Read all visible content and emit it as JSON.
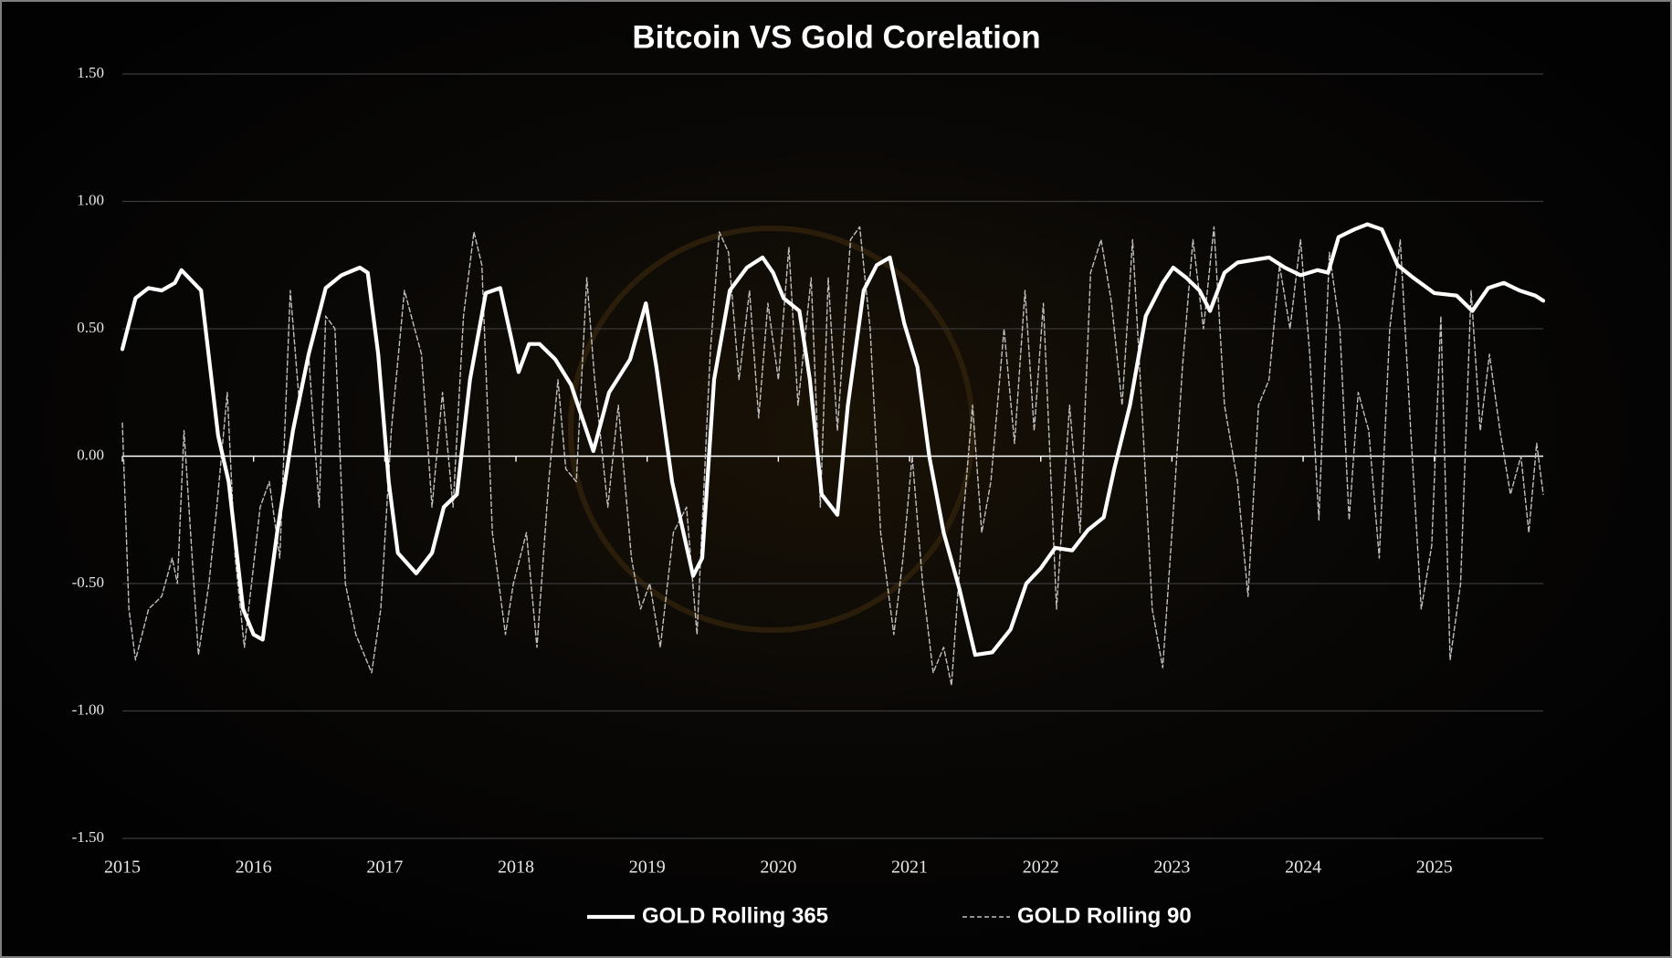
{
  "chart_data": {
    "type": "line",
    "title": "Bitcoin VS Gold Corelation",
    "xlim": [
      2015,
      2025.83
    ],
    "xticks": [
      2015,
      2016,
      2017,
      2018,
      2019,
      2020,
      2021,
      2022,
      2023,
      2024,
      2025
    ],
    "ylim": [
      -1.5,
      1.5
    ],
    "yticks": [
      {
        "value": -1.5,
        "label": "-1.50"
      },
      {
        "value": -1,
        "label": "-1.00"
      },
      {
        "value": -0.5,
        "label": "-0.50"
      },
      {
        "value": 0,
        "label": "0.00"
      },
      {
        "value": 0.5,
        "label": "0.50"
      },
      {
        "value": 1,
        "label": "1.00"
      },
      {
        "value": 1.5,
        "label": "1.50"
      }
    ],
    "grid": true,
    "legend": "bottom",
    "series": [
      {
        "name": "GOLD Rolling 365",
        "color": "#ffffff",
        "style": "solid",
        "x": [
          2015.0,
          2015.1,
          2015.2,
          2015.3,
          2015.4,
          2015.45,
          2015.6,
          2015.73,
          2015.81,
          2015.92,
          2016.0,
          2016.07,
          2016.18,
          2016.3,
          2016.42,
          2016.55,
          2016.67,
          2016.81,
          2016.87,
          2016.95,
          2017.03,
          2017.1,
          2017.24,
          2017.36,
          2017.45,
          2017.55,
          2017.65,
          2017.77,
          2017.88,
          2017.97,
          2018.02,
          2018.1,
          2018.18,
          2018.3,
          2018.42,
          2018.59,
          2018.71,
          2018.87,
          2018.99,
          2019.07,
          2019.19,
          2019.35,
          2019.42,
          2019.51,
          2019.63,
          2019.76,
          2019.88,
          2019.96,
          2020.04,
          2020.16,
          2020.24,
          2020.33,
          2020.45,
          2020.53,
          2020.65,
          2020.75,
          2020.85,
          2020.96,
          2021.06,
          2021.15,
          2021.26,
          2021.38,
          2021.5,
          2021.63,
          2021.77,
          2021.89,
          2022.0,
          2022.11,
          2022.24,
          2022.36,
          2022.48,
          2022.56,
          2022.68,
          2022.8,
          2022.93,
          2023.01,
          2023.11,
          2023.21,
          2023.29,
          2023.4,
          2023.5,
          2023.62,
          2023.74,
          2023.86,
          2023.98,
          2024.11,
          2024.19,
          2024.27,
          2024.39,
          2024.49,
          2024.6,
          2024.72,
          2024.84,
          2025.0,
          2025.17,
          2025.29,
          2025.41,
          2025.53,
          2025.65,
          2025.77,
          2025.83
        ],
        "values": [
          0.42,
          0.62,
          0.66,
          0.65,
          0.68,
          0.73,
          0.65,
          0.08,
          -0.1,
          -0.6,
          -0.7,
          -0.72,
          -0.3,
          0.1,
          0.4,
          0.66,
          0.71,
          0.74,
          0.72,
          0.4,
          -0.1,
          -0.38,
          -0.46,
          -0.38,
          -0.2,
          -0.15,
          0.3,
          0.64,
          0.66,
          0.45,
          0.33,
          0.44,
          0.44,
          0.38,
          0.28,
          0.02,
          0.25,
          0.38,
          0.6,
          0.35,
          -0.1,
          -0.47,
          -0.4,
          0.3,
          0.65,
          0.74,
          0.78,
          0.72,
          0.62,
          0.57,
          0.3,
          -0.15,
          -0.23,
          0.2,
          0.65,
          0.75,
          0.78,
          0.52,
          0.35,
          0.0,
          -0.3,
          -0.52,
          -0.78,
          -0.77,
          -0.68,
          -0.5,
          -0.44,
          -0.36,
          -0.37,
          -0.29,
          -0.24,
          -0.05,
          0.2,
          0.55,
          0.68,
          0.74,
          0.7,
          0.65,
          0.57,
          0.72,
          0.76,
          0.77,
          0.78,
          0.74,
          0.71,
          0.73,
          0.72,
          0.86,
          0.89,
          0.91,
          0.89,
          0.75,
          0.7,
          0.64,
          0.63,
          0.57,
          0.66,
          0.68,
          0.65,
          0.63,
          0.61
        ]
      },
      {
        "name": "GOLD Rolling 90",
        "color": "#bfbfbf",
        "style": "dashed",
        "x": [
          2015.0,
          2015.05,
          2015.1,
          2015.2,
          2015.3,
          2015.38,
          2015.42,
          2015.47,
          2015.52,
          2015.58,
          2015.66,
          2015.72,
          2015.8,
          2015.86,
          2015.93,
          2016.05,
          2016.12,
          2016.2,
          2016.28,
          2016.35,
          2016.42,
          2016.5,
          2016.55,
          2016.62,
          2016.7,
          2016.78,
          2016.9,
          2016.97,
          2017.05,
          2017.15,
          2017.28,
          2017.36,
          2017.44,
          2017.52,
          2017.6,
          2017.68,
          2017.74,
          2017.82,
          2017.92,
          2017.98,
          2018.08,
          2018.16,
          2018.25,
          2018.32,
          2018.38,
          2018.46,
          2018.54,
          2018.6,
          2018.7,
          2018.78,
          2018.88,
          2018.95,
          2019.02,
          2019.1,
          2019.2,
          2019.3,
          2019.38,
          2019.48,
          2019.55,
          2019.62,
          2019.7,
          2019.78,
          2019.85,
          2019.92,
          2020.0,
          2020.08,
          2020.15,
          2020.25,
          2020.32,
          2020.38,
          2020.45,
          2020.55,
          2020.62,
          2020.7,
          2020.78,
          2020.88,
          2020.95,
          2021.02,
          2021.1,
          2021.18,
          2021.26,
          2021.32,
          2021.4,
          2021.48,
          2021.55,
          2021.62,
          2021.72,
          2021.8,
          2021.88,
          2021.95,
          2022.02,
          2022.12,
          2022.22,
          2022.3,
          2022.38,
          2022.46,
          2022.54,
          2022.62,
          2022.7,
          2022.78,
          2022.85,
          2022.93,
          2023.0,
          2023.08,
          2023.16,
          2023.24,
          2023.32,
          2023.4,
          2023.5,
          2023.58,
          2023.66,
          2023.74,
          2023.82,
          2023.9,
          2023.98,
          2024.05,
          2024.12,
          2024.2,
          2024.28,
          2024.35,
          2024.42,
          2024.5,
          2024.58,
          2024.66,
          2024.74,
          2024.82,
          2024.9,
          2024.98,
          2025.05,
          2025.12,
          2025.2,
          2025.28,
          2025.35,
          2025.42,
          2025.5,
          2025.58,
          2025.66,
          2025.72,
          2025.78,
          2025.83
        ],
        "values": [
          0.13,
          -0.6,
          -0.8,
          -0.6,
          -0.55,
          -0.4,
          -0.5,
          0.1,
          -0.3,
          -0.78,
          -0.5,
          -0.2,
          0.25,
          -0.4,
          -0.75,
          -0.2,
          -0.1,
          -0.4,
          0.65,
          0.2,
          0.4,
          -0.2,
          0.55,
          0.5,
          -0.5,
          -0.7,
          -0.85,
          -0.6,
          0.1,
          0.65,
          0.4,
          -0.2,
          0.25,
          -0.2,
          0.55,
          0.88,
          0.75,
          -0.3,
          -0.7,
          -0.5,
          -0.3,
          -0.75,
          -0.1,
          0.3,
          -0.05,
          -0.1,
          0.7,
          0.3,
          -0.2,
          0.2,
          -0.4,
          -0.6,
          -0.5,
          -0.75,
          -0.3,
          -0.2,
          -0.7,
          0.4,
          0.88,
          0.8,
          0.3,
          0.65,
          0.15,
          0.6,
          0.3,
          0.82,
          0.2,
          0.7,
          -0.2,
          0.7,
          0.1,
          0.85,
          0.9,
          0.5,
          -0.3,
          -0.7,
          -0.4,
          0.0,
          -0.5,
          -0.85,
          -0.75,
          -0.9,
          -0.3,
          0.2,
          -0.3,
          -0.1,
          0.5,
          0.05,
          0.65,
          0.1,
          0.6,
          -0.6,
          0.2,
          -0.3,
          0.72,
          0.85,
          0.6,
          0.2,
          0.85,
          0.1,
          -0.6,
          -0.83,
          -0.3,
          0.35,
          0.85,
          0.5,
          0.9,
          0.2,
          -0.1,
          -0.55,
          0.2,
          0.3,
          0.75,
          0.5,
          0.85,
          0.4,
          -0.25,
          0.8,
          0.5,
          -0.25,
          0.25,
          0.1,
          -0.4,
          0.5,
          0.85,
          0.1,
          -0.6,
          -0.35,
          0.55,
          -0.8,
          -0.5,
          0.65,
          0.1,
          0.4,
          0.1,
          -0.15,
          0.0,
          -0.3,
          0.05,
          -0.15
        ]
      }
    ]
  }
}
